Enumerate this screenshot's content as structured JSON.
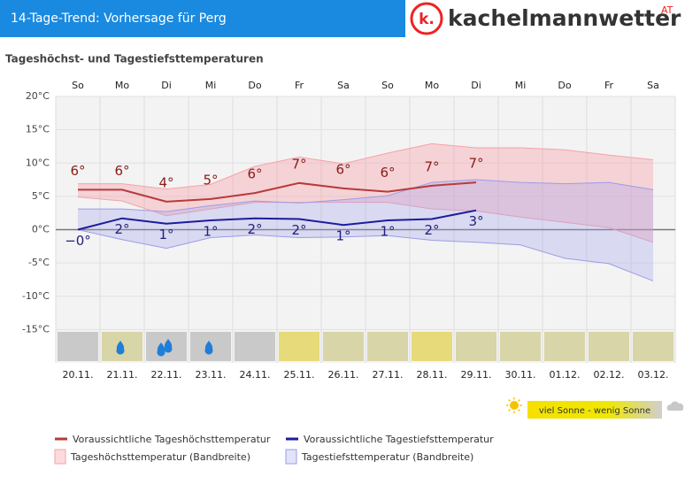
{
  "header": {
    "title": "14-Tage-Trend: Vorhersage für Perg",
    "logo": "kachelmannwetter",
    "logo_mark": "k.",
    "logo_suffix": "AT"
  },
  "chart_data": {
    "type": "line",
    "title": "Tageshöchst- und Tagestiefsttemperaturen",
    "categories": [
      "So",
      "Mo",
      "Di",
      "Mi",
      "Do",
      "Fr",
      "Sa",
      "So",
      "Mo",
      "Di",
      "Mi",
      "Do",
      "Fr",
      "Sa"
    ],
    "dates": [
      "20.11.",
      "21.11.",
      "22.11.",
      "23.11.",
      "24.11.",
      "25.11.",
      "26.11.",
      "27.11.",
      "28.11.",
      "29.11.",
      "30.11.",
      "01.12.",
      "02.12.",
      "03.12."
    ],
    "ylim": [
      -20,
      20
    ],
    "yticks": [
      {
        "value": 20,
        "label": "20°C"
      },
      {
        "value": 15,
        "label": "15°C"
      },
      {
        "value": 10,
        "label": "10°C"
      },
      {
        "value": 5,
        "label": "5°C"
      },
      {
        "value": 0,
        "label": "0°C"
      },
      {
        "value": -5,
        "label": "-5°C"
      },
      {
        "value": -10,
        "label": "-10°C"
      },
      {
        "value": -15,
        "label": "-15°C"
      }
    ],
    "grid": true,
    "series": [
      {
        "name": "Voraussichtliche Tageshöchsttemperatur",
        "color": "#b83a3a",
        "label_color": "#8a1a1a",
        "label_side": "above",
        "values": [
          6,
          6,
          4.2,
          4.6,
          5.5,
          7,
          6.2,
          5.7,
          6.6,
          7.1,
          null,
          null,
          null,
          null
        ],
        "value_labels": [
          "6°",
          "6°",
          "4°",
          "5°",
          "6°",
          "7°",
          "6°",
          "6°",
          "7°",
          "7°",
          null,
          null,
          null,
          null
        ]
      },
      {
        "name": "Voraussichtliche Tagestiefsttemperatur",
        "color": "#1c1c9c",
        "label_color": "#1f1f7a",
        "label_side": "below",
        "values": [
          0,
          1.7,
          0.9,
          1.4,
          1.7,
          1.6,
          0.7,
          1.4,
          1.6,
          2.9,
          null,
          null,
          null,
          null
        ],
        "value_labels": [
          "−0°",
          "2°",
          "1°",
          "1°",
          "2°",
          "2°",
          "1°",
          "1°",
          "2°",
          "3°",
          null,
          null,
          null,
          null
        ]
      }
    ],
    "bands": [
      {
        "name": "Tageshöchsttemperatur (Bandbreite)",
        "color": "#f4a3a8",
        "fill": "rgba(250,150,160,0.35)",
        "upper": [
          6.9,
          6.9,
          6.1,
          6.8,
          9.5,
          10.9,
          9.9,
          11.5,
          12.9,
          12.3,
          12.3,
          12.0,
          11.2,
          10.5
        ],
        "lower": [
          4.9,
          4.3,
          2.1,
          3.1,
          4.1,
          4.1,
          4.1,
          4.1,
          3.1,
          2.8,
          1.9,
          1.1,
          0.3,
          -1.9
        ]
      },
      {
        "name": "Tagestiefsttemperatur (Bandbreite)",
        "color": "#9c9ce8",
        "fill": "rgba(160,160,240,0.3)",
        "upper": [
          3.1,
          3.1,
          2.7,
          3.6,
          4.3,
          4.0,
          4.5,
          5.1,
          7.1,
          7.5,
          7.1,
          6.9,
          7.1,
          6.0
        ],
        "lower": [
          0,
          -1.5,
          -2.8,
          -1.2,
          -0.8,
          -1.2,
          -1.1,
          -0.9,
          -1.6,
          -1.9,
          -2.3,
          -4.3,
          -5.1,
          -7.7
        ]
      }
    ],
    "weather_colors": [
      "#c9c9c9",
      "#d8d5a8",
      "#c9c9c9",
      "#c9c9c9",
      "#c9c9c9",
      "#e6da7a",
      "#d8d5a8",
      "#d8d5a8",
      "#e6da7a",
      "#d8d5a8",
      "#d8d5a8",
      "#d8d5a8",
      "#d8d5a8",
      "#d8d5a8"
    ],
    "rain_drops": [
      0,
      1,
      2,
      1,
      0,
      0,
      0,
      0,
      0,
      0,
      0,
      0,
      0,
      0
    ],
    "weather_legend": "viel Sonne - wenig Sonne"
  }
}
